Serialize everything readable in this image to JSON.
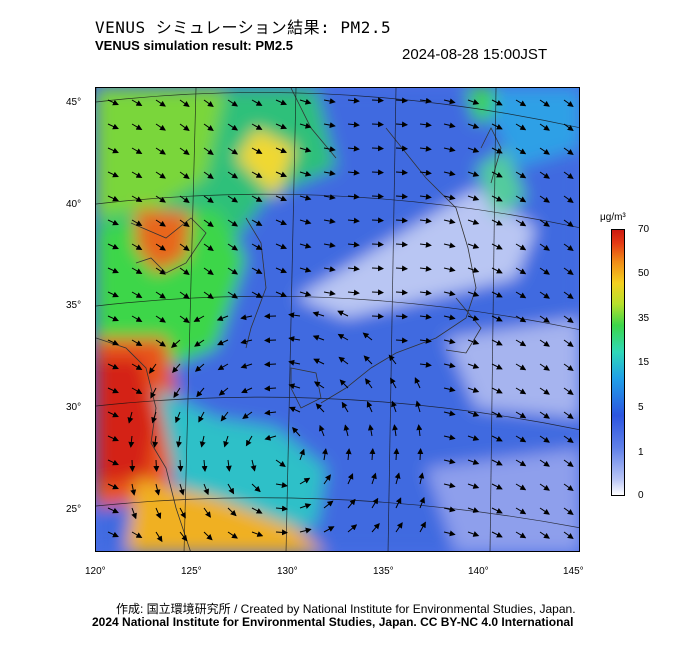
{
  "header": {
    "title_jp": "VENUS シミュレーション結果: PM2.5",
    "title_en": "VENUS simulation result: PM2.5",
    "timestamp": "2024-08-28 15:00JST"
  },
  "map": {
    "lat_labels": [
      "45°",
      "40°",
      "35°",
      "30°",
      "25°"
    ],
    "lon_labels": [
      "120°",
      "125°",
      "130°",
      "135°",
      "140°",
      "145°"
    ]
  },
  "colorbar": {
    "unit": "μg/m³",
    "ticks": [
      "70",
      "50",
      "35",
      "15",
      "5",
      "1",
      "0"
    ],
    "colors": [
      "#ffffff",
      "#5f7fe8",
      "#20a0e8",
      "#3cd64a",
      "#f4d020",
      "#cc1a10"
    ]
  },
  "footer": {
    "credit": "作成: 国立環境研究所 / Created by National Institute for Environmental Studies, Japan.",
    "copyright": "2024 National Institute for Environmental Studies, Japan. CC BY-NC 4.0 International"
  }
}
